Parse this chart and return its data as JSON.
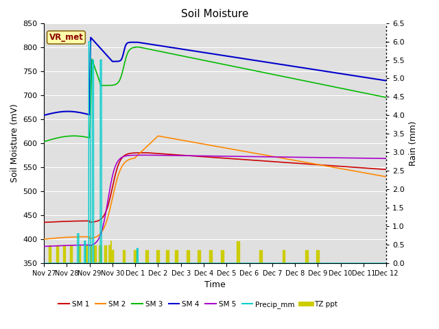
{
  "title": "Soil Moisture",
  "xlabel": "Time",
  "ylabel_left": "Soil Moisture (mV)",
  "ylabel_right": "Rain (mm)",
  "ylim_left": [
    350,
    850
  ],
  "ylim_right": [
    0.0,
    6.5
  ],
  "bg_color": "#e0e0e0",
  "label_box": "VR_met",
  "label_box_color": "#ffffaa",
  "label_box_text_color": "#8b0000",
  "series_colors": {
    "SM1": "#cc0000",
    "SM2": "#ff8800",
    "SM3": "#00bb00",
    "SM4": "#0000cc",
    "SM5": "#aa00cc",
    "Precip_mm": "#00cccc",
    "TZ_ppt": "#cccc00"
  },
  "xtick_labels": [
    "Nov 27",
    "Nov 28",
    "Nov 29",
    "Nov 30",
    "Dec 1",
    "Dec 2",
    "Dec 3",
    "Dec 4",
    "Dec 5",
    "Dec 6",
    "Dec 7",
    "Dec 8",
    "Dec 9",
    "Dec 10",
    "Dec 11",
    "Dec 12"
  ],
  "yticks_left": [
    350,
    400,
    450,
    500,
    550,
    600,
    650,
    700,
    750,
    800,
    850
  ],
  "yticks_right": [
    0.0,
    0.5,
    1.0,
    1.5,
    2.0,
    2.5,
    3.0,
    3.5,
    4.0,
    4.5,
    5.0,
    5.5,
    6.0,
    6.5
  ]
}
